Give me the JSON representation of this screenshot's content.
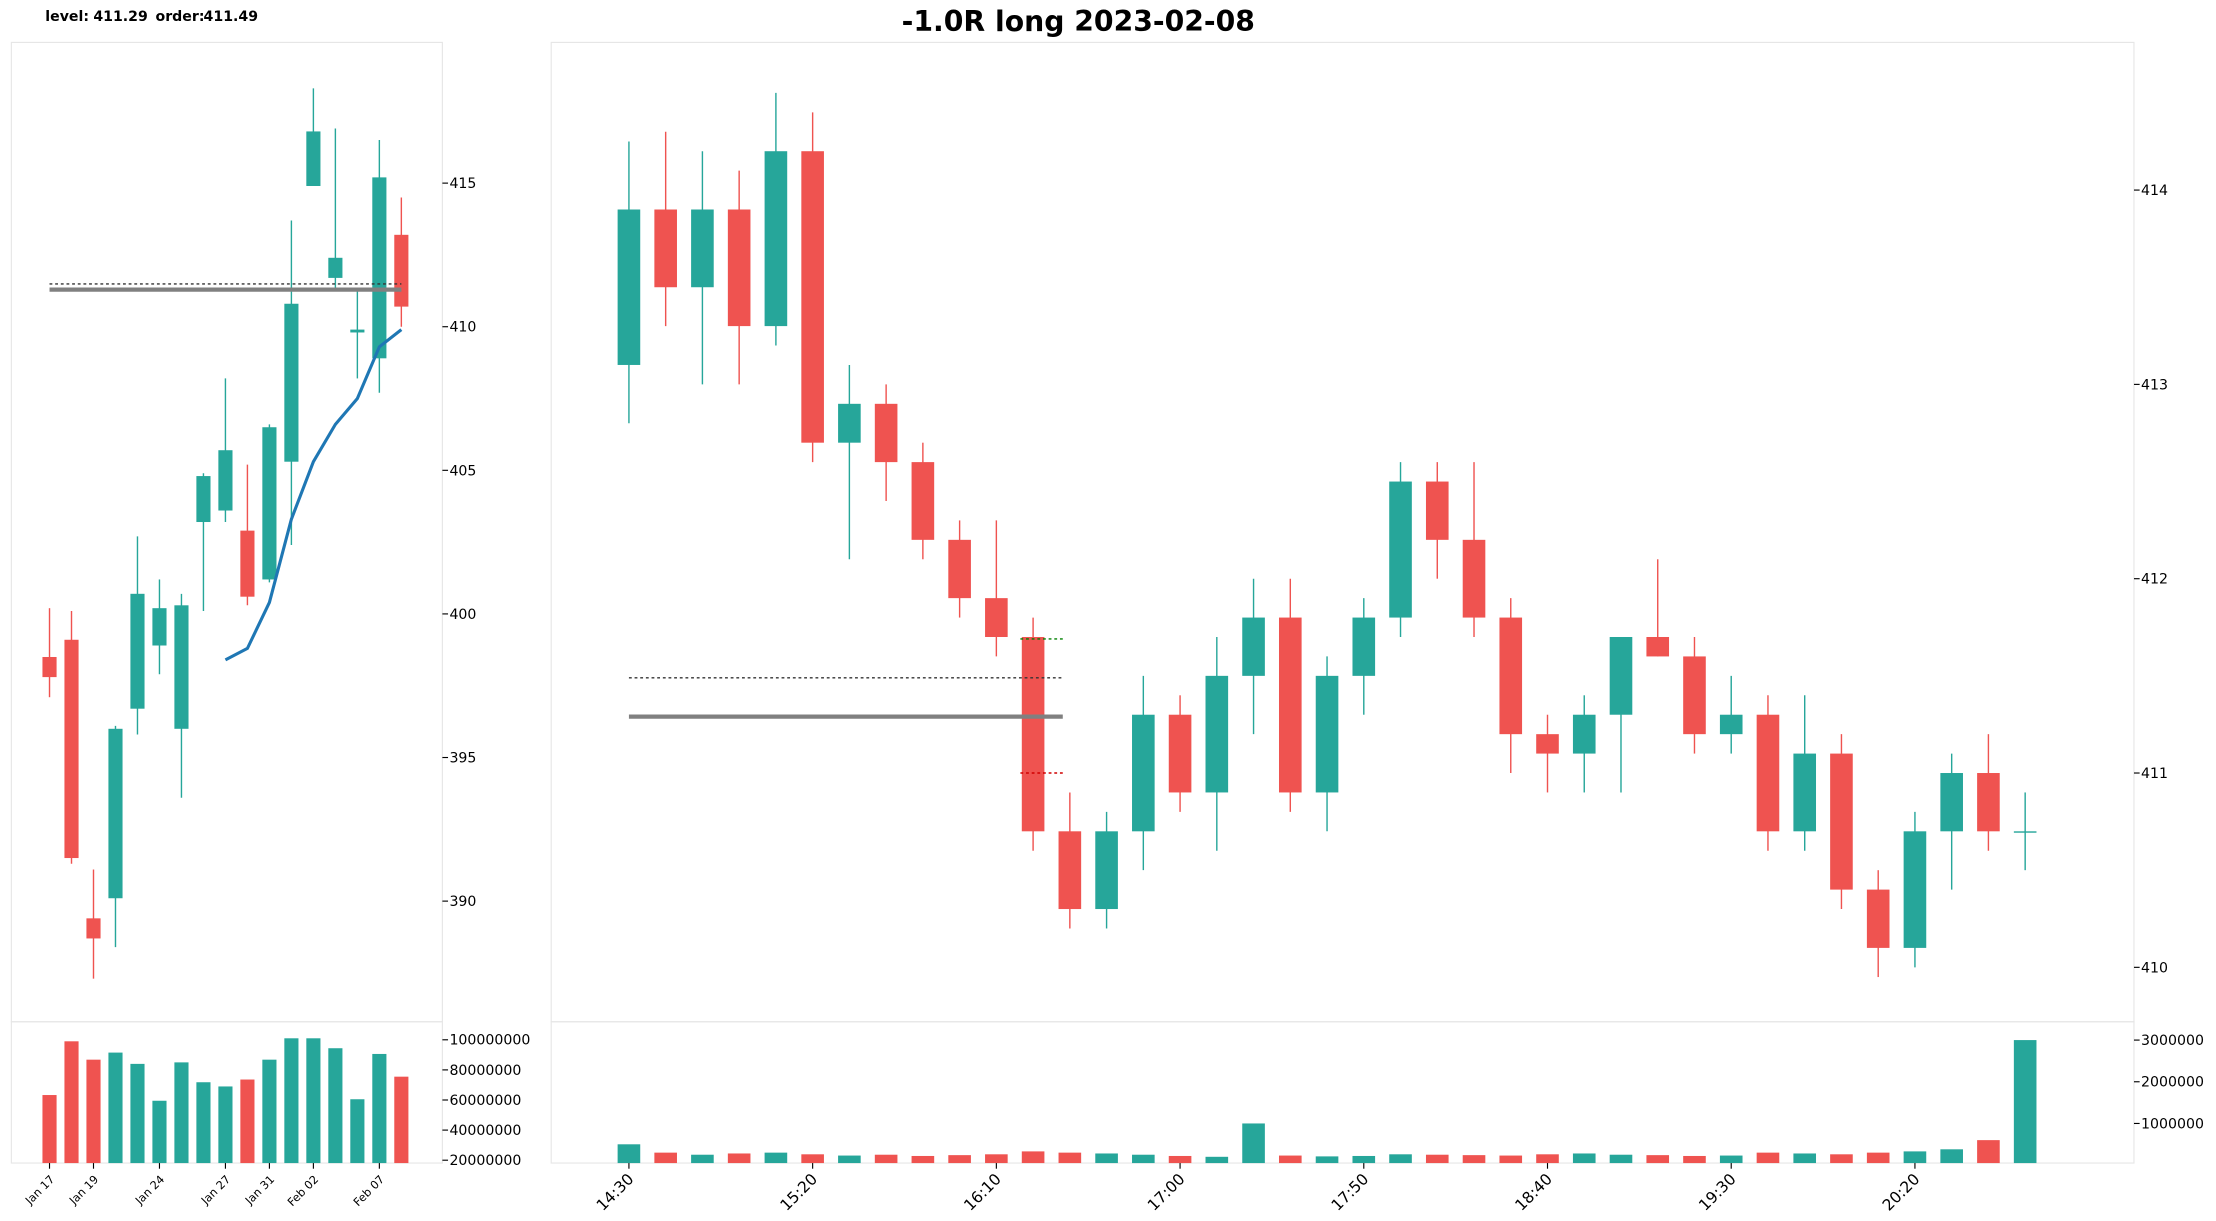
{
  "header": {
    "level_label": "level:",
    "level": 411.29,
    "order_label": "order:",
    "order": 411.49
  },
  "chart_data": [
    {
      "type": "candlestick",
      "up_color": "#26a69a",
      "down_color": "#ef5350",
      "categories": [
        "Jan 17",
        null,
        "Jan 19",
        null,
        null,
        "Jan 24",
        null,
        null,
        "Jan 27",
        null,
        "Jan 31",
        null,
        "Feb 02",
        null,
        null,
        "Feb 07",
        null
      ],
      "open": [
        398.5,
        399.1,
        389.4,
        390.1,
        396.7,
        398.9,
        396.0,
        403.2,
        403.6,
        402.9,
        401.2,
        405.3,
        414.9,
        411.7,
        409.8,
        408.9,
        413.2
      ],
      "high": [
        400.2,
        400.1,
        391.1,
        396.1,
        402.7,
        401.2,
        400.7,
        404.9,
        408.2,
        405.2,
        406.6,
        413.7,
        418.3,
        416.9,
        411.3,
        416.5,
        414.5
      ],
      "low": [
        397.1,
        391.3,
        387.3,
        388.4,
        395.8,
        397.9,
        393.6,
        400.1,
        403.2,
        400.3,
        401.1,
        402.4,
        414.9,
        411.3,
        408.2,
        407.7,
        410.0
      ],
      "close": [
        397.8,
        391.5,
        388.7,
        396.0,
        400.7,
        400.2,
        400.3,
        404.8,
        405.7,
        400.6,
        406.5,
        410.8,
        416.8,
        412.4,
        409.9,
        415.2,
        410.7
      ],
      "ma": {
        "color": "#1f77b4",
        "values": [
          null,
          null,
          null,
          null,
          null,
          null,
          null,
          null,
          398.4,
          398.8,
          400.4,
          403.3,
          405.3,
          406.6,
          407.5,
          409.3,
          409.9
        ]
      },
      "hlines": [
        {
          "value": 411.29,
          "color": "#808080",
          "style": "solid",
          "extent": "long"
        },
        {
          "value": 411.49,
          "color": "#333333",
          "style": "dotted",
          "extent": "long"
        }
      ],
      "ylim": [
        385.8,
        419.9
      ],
      "yticks": [
        390,
        395,
        400,
        405,
        410,
        415
      ],
      "volume": [
        63300000,
        99000000,
        86800000,
        91500000,
        84000000,
        59500000,
        85000000,
        71800000,
        69000000,
        73600000,
        86800000,
        101000000,
        101000000,
        94400000,
        60500000,
        90600000,
        75500000
      ],
      "volume_ylim": [
        18100000,
        112000000
      ],
      "volume_yticks": [
        20000000,
        40000000,
        60000000,
        80000000,
        100000000
      ]
    },
    {
      "type": "candlestick",
      "title": "-1.0R long 2023-02-08",
      "up_color": "#26a69a",
      "down_color": "#ef5350",
      "categories": [
        "14:30",
        null,
        null,
        null,
        null,
        "15:20",
        null,
        null,
        null,
        null,
        "16:10",
        null,
        null,
        null,
        null,
        "17:00",
        null,
        null,
        null,
        null,
        "17:50",
        null,
        null,
        null,
        null,
        "18:40",
        null,
        null,
        null,
        null,
        "19:30",
        null,
        null,
        null,
        null,
        "20:20",
        null,
        null,
        null
      ],
      "open": [
        413.1,
        413.9,
        413.5,
        413.9,
        413.3,
        414.2,
        412.7,
        412.9,
        412.6,
        412.2,
        411.9,
        411.7,
        410.7,
        410.3,
        410.7,
        411.3,
        410.9,
        411.5,
        411.8,
        410.9,
        411.5,
        411.8,
        412.5,
        412.2,
        411.8,
        411.2,
        411.1,
        411.3,
        411.7,
        411.6,
        411.2,
        411.3,
        410.7,
        411.1,
        410.4,
        410.1,
        410.7,
        411.0,
        410.7
      ],
      "high": [
        414.25,
        414.3,
        414.2,
        414.1,
        414.5,
        414.4,
        413.1,
        413.0,
        412.7,
        412.3,
        412.3,
        411.8,
        410.9,
        410.8,
        411.5,
        411.4,
        411.7,
        412.0,
        412.0,
        411.6,
        411.9,
        412.6,
        412.6,
        412.6,
        411.9,
        411.3,
        411.4,
        411.7,
        412.1,
        411.7,
        411.5,
        411.4,
        411.4,
        411.2,
        410.5,
        410.8,
        411.1,
        411.2,
        410.9
      ],
      "low": [
        412.8,
        413.3,
        413.0,
        413.0,
        413.2,
        412.6,
        412.1,
        412.4,
        412.1,
        411.8,
        411.6,
        410.6,
        410.2,
        410.2,
        410.5,
        410.8,
        410.6,
        411.2,
        410.8,
        410.7,
        411.3,
        411.7,
        412.0,
        411.7,
        411.0,
        410.9,
        410.9,
        410.9,
        411.6,
        411.1,
        411.1,
        410.6,
        410.6,
        410.3,
        409.95,
        410.0,
        410.4,
        410.6,
        410.5
      ],
      "close": [
        413.9,
        413.5,
        413.9,
        413.3,
        414.2,
        412.7,
        412.9,
        412.6,
        412.2,
        411.9,
        411.7,
        410.7,
        410.3,
        410.7,
        411.3,
        410.9,
        411.5,
        411.8,
        410.9,
        411.5,
        411.8,
        412.5,
        412.2,
        411.8,
        411.2,
        411.1,
        411.3,
        411.7,
        411.6,
        411.2,
        411.3,
        410.7,
        411.1,
        410.4,
        410.1,
        410.7,
        411.0,
        410.7,
        410.7
      ],
      "hlines": [
        {
          "value": 411.29,
          "color": "#808080",
          "style": "solid",
          "extent": "long"
        },
        {
          "value": 411.49,
          "color": "#333333",
          "style": "dotted",
          "extent": "long"
        },
        {
          "value": 411.69,
          "color": "#008000",
          "style": "dotted",
          "extent": "short"
        },
        {
          "value": 411.0,
          "color": "#d00000",
          "style": "dotted",
          "extent": "short"
        }
      ],
      "ylim": [
        409.72,
        414.76
      ],
      "yticks": [
        410,
        411,
        412,
        413,
        414
      ],
      "volume": [
        500000,
        300000,
        250000,
        280000,
        300000,
        260000,
        230000,
        250000,
        220000,
        240000,
        260000,
        330000,
        300000,
        280000,
        250000,
        220000,
        200000,
        1000000,
        230000,
        210000,
        220000,
        260000,
        250000,
        240000,
        230000,
        260000,
        280000,
        250000,
        240000,
        220000,
        230000,
        300000,
        280000,
        260000,
        300000,
        330000,
        380000,
        600000,
        3000000
      ],
      "volume_ylim": [
        50000,
        3440000
      ],
      "volume_yticks": [
        1000000,
        2000000,
        3000000
      ]
    }
  ]
}
